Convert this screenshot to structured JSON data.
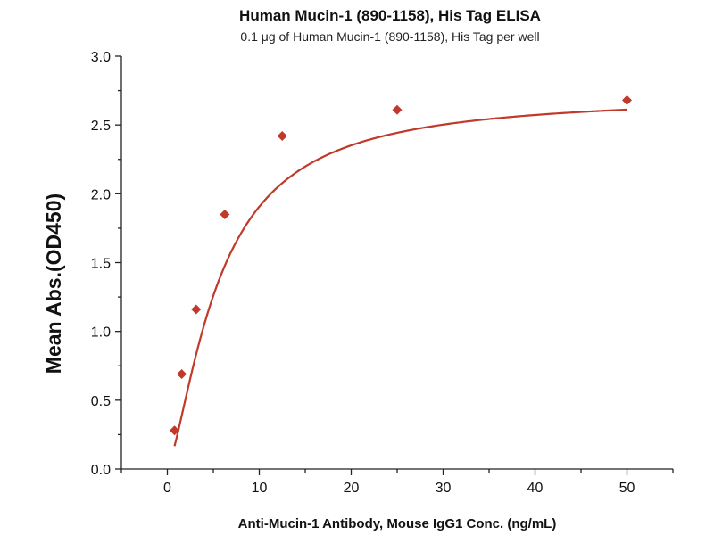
{
  "chart_data": {
    "type": "scatter",
    "title": "Human Mucin-1 (890-1158), His Tag ELISA",
    "subtitle": "0.1 μg of Human Mucin-1 (890-1158), His Tag per well",
    "xlabel": "Anti-Mucin-1 Antibody, Mouse IgG1 Conc. (ng/mL)",
    "ylabel": "Mean Abs.(OD450)",
    "xlim": [
      -5,
      55
    ],
    "ylim": [
      0.0,
      3.0
    ],
    "x_ticks": [
      0,
      10,
      20,
      30,
      40,
      50
    ],
    "y_ticks": [
      "0.0",
      "0.5",
      "1.0",
      "1.5",
      "2.0",
      "2.5",
      "3.0"
    ],
    "marker_color": "#c0392b",
    "curve_color": "#c0392b",
    "series": [
      {
        "marker": "diamond",
        "fit": "four-parameter logistic curve",
        "x": [
          0.78,
          1.56,
          3.13,
          6.25,
          12.5,
          25,
          50
        ],
        "y": [
          0.28,
          0.69,
          1.16,
          1.85,
          2.42,
          2.61,
          2.68
        ]
      }
    ]
  }
}
